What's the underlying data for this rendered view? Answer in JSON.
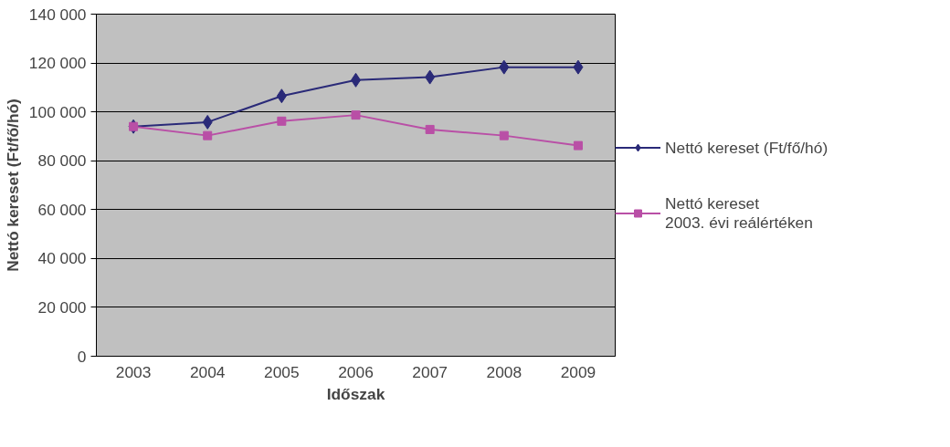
{
  "chart_data": {
    "type": "line",
    "xlabel": "Időszak",
    "ylabel": "Nettó kereset (Ft/fő/hó)",
    "categories": [
      "2003",
      "2004",
      "2005",
      "2006",
      "2007",
      "2008",
      "2009"
    ],
    "series": [
      {
        "name": "Nettó kereset (Ft/fő/hó)",
        "color": "#2a2a78",
        "marker": "diamond",
        "values": [
          94000,
          95800,
          106500,
          113000,
          114200,
          118300,
          118300
        ]
      },
      {
        "name": "Nettó kereset\n2003. évi reálértéken",
        "color": "#b94fa6",
        "marker": "square",
        "values": [
          94000,
          90300,
          96200,
          98700,
          92800,
          90300,
          86200
        ]
      }
    ],
    "ylim": [
      0,
      140000
    ],
    "yticks": [
      {
        "value": 0,
        "label": "0"
      },
      {
        "value": 20000,
        "label": "20 000"
      },
      {
        "value": 40000,
        "label": "40 000"
      },
      {
        "value": 60000,
        "label": "60 000"
      },
      {
        "value": 80000,
        "label": "80 000"
      },
      {
        "value": 100000,
        "label": "100 000"
      },
      {
        "value": 120000,
        "label": "120 000"
      },
      {
        "value": 140000,
        "label": "140 000"
      }
    ],
    "grid": "y",
    "legend": "right",
    "line_style": "solid"
  }
}
